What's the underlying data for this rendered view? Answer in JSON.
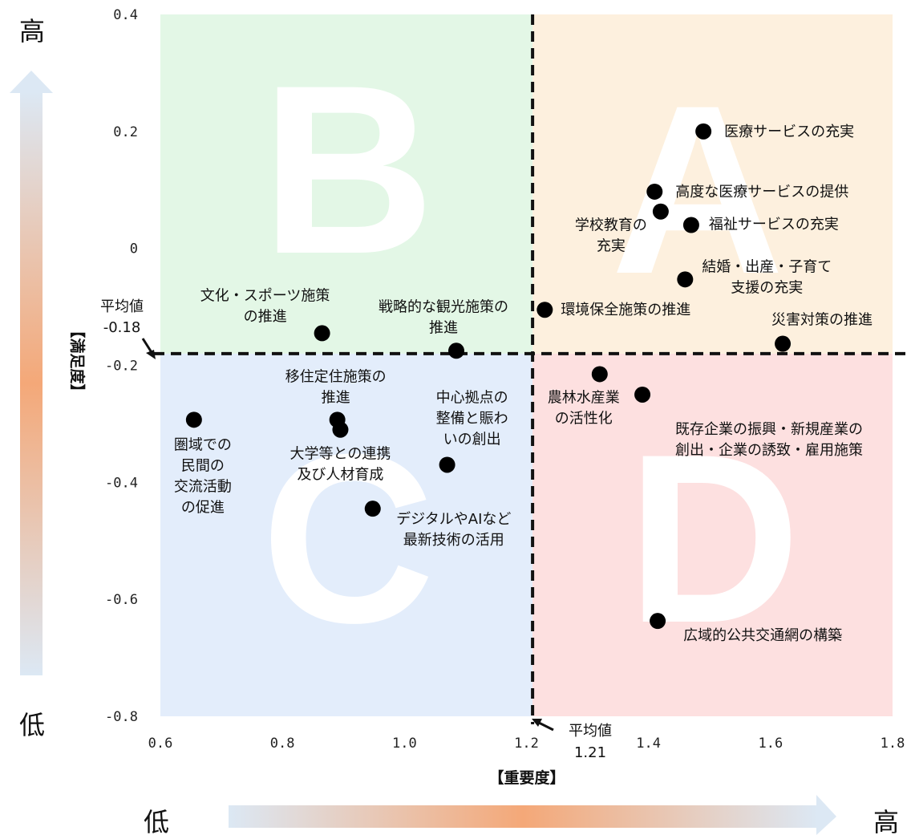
{
  "chart_data": {
    "type": "scatter",
    "xlabel": "【重要度】",
    "ylabel": "【満足度】",
    "xlim": [
      0.6,
      1.8
    ],
    "ylim": [
      -0.8,
      0.4
    ],
    "xticks": [
      "0.6",
      "0.8",
      "1.0",
      "1.2",
      "1.4",
      "1.6",
      "1.8"
    ],
    "yticks": [
      "0.4",
      "0.2",
      "0",
      "-0.2",
      "-0.4",
      "-0.6",
      "-0.8"
    ],
    "grid": false,
    "averages": {
      "x": {
        "value": 1.21,
        "label": "平均値",
        "value_label": "1.21"
      },
      "y": {
        "value": -0.18,
        "label": "平均値",
        "value_label": "-0.18"
      }
    },
    "quadrants": [
      {
        "letter": "A",
        "color": "#fdf0de"
      },
      {
        "letter": "B",
        "color": "#e3f7e6"
      },
      {
        "letter": "C",
        "color": "#e3edfb"
      },
      {
        "letter": "D",
        "color": "#fde0e0"
      }
    ],
    "points": [
      {
        "x": 1.49,
        "y": 0.2,
        "label": [
          "医療サービスの充実"
        ]
      },
      {
        "x": 1.41,
        "y": 0.097,
        "label": [
          "高度な医療サービスの提供"
        ]
      },
      {
        "x": 1.42,
        "y": 0.063,
        "label": [
          "学校教育の",
          "充実"
        ]
      },
      {
        "x": 1.47,
        "y": 0.04,
        "label": [
          "福祉サービスの充実"
        ]
      },
      {
        "x": 1.46,
        "y": -0.053,
        "label": [
          "結婚・出産・子育て",
          "支援の充実"
        ]
      },
      {
        "x": 1.23,
        "y": -0.105,
        "label": [
          "環境保全施策の推進"
        ]
      },
      {
        "x": 1.62,
        "y": -0.163,
        "label": [
          "災害対策の推進"
        ]
      },
      {
        "x": 0.865,
        "y": -0.145,
        "label": [
          "文化・スポーツ施策",
          "の推進"
        ]
      },
      {
        "x": 1.085,
        "y": -0.175,
        "label": [
          "戦略的な観光施策の",
          "推進"
        ]
      },
      {
        "x": 1.32,
        "y": -0.215,
        "label": [
          "農林水産業",
          "の活性化"
        ]
      },
      {
        "x": 1.39,
        "y": -0.25,
        "label": [
          "既存企業の振興・新規産業の",
          "創出・企業の誘致・雇用施策"
        ]
      },
      {
        "x": 0.655,
        "y": -0.293,
        "label": [
          "圏域での",
          "民間の",
          "交流活動",
          "の促進"
        ]
      },
      {
        "x": 0.89,
        "y": -0.293,
        "label": [
          "移住定住施策の",
          "推進"
        ]
      },
      {
        "x": 0.895,
        "y": -0.31,
        "label": [
          "大学等との連携",
          "及び人材育成"
        ]
      },
      {
        "x": 1.07,
        "y": -0.37,
        "label": [
          "中心拠点の",
          "整備と賑わ",
          "いの創出"
        ]
      },
      {
        "x": 0.948,
        "y": -0.445,
        "label": [
          "デジタルやAIなど",
          "最新技術の活用"
        ]
      },
      {
        "x": 1.415,
        "y": -0.637,
        "label": [
          "広域的公共交通網の構築"
        ]
      }
    ]
  },
  "indicators": {
    "y_high": "高",
    "y_low": "低",
    "x_low": "低",
    "x_high": "高",
    "gradient_light": "#dce8f4",
    "gradient_accent": "#f4a878"
  }
}
